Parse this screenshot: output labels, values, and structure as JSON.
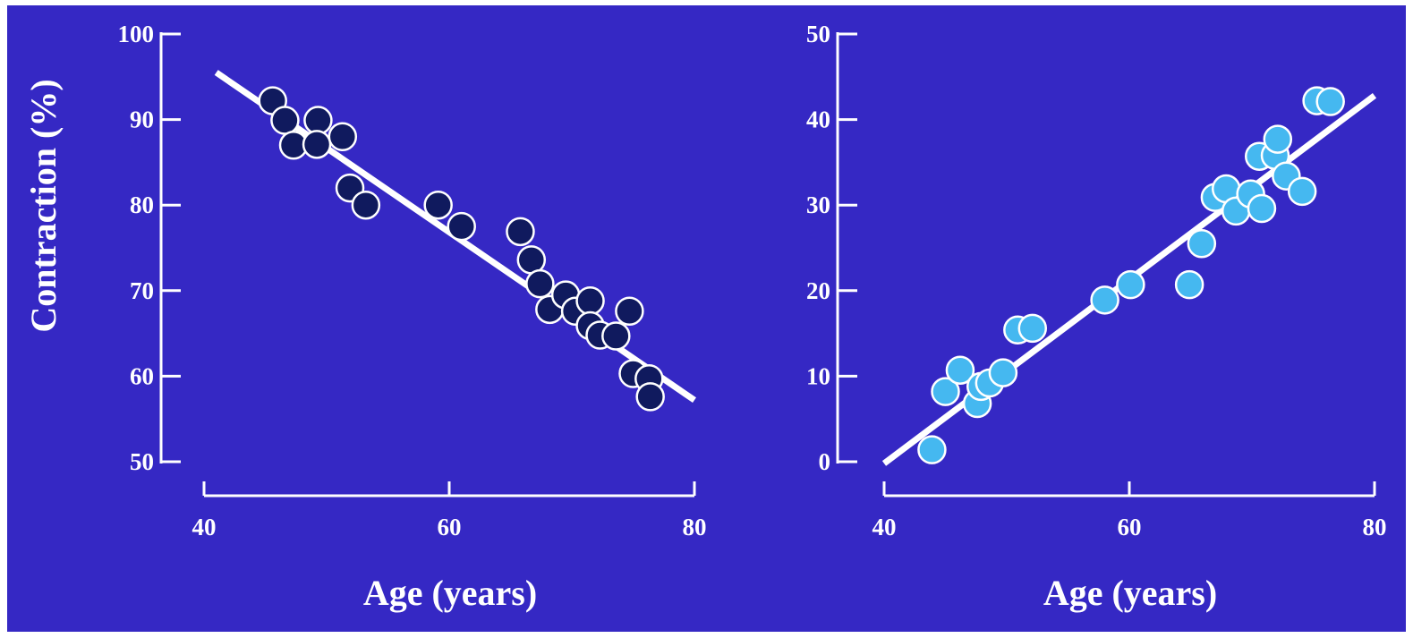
{
  "colors": {
    "background": "#3528c4",
    "axis": "#ffffff",
    "left_marker_fill": "#101a5e",
    "right_marker_fill": "#45b8f0",
    "marker_stroke": "#ffffff",
    "fit_line": "#ffffff"
  },
  "chart_data": [
    {
      "type": "scatter",
      "title": "",
      "xlabel": "Age (years)",
      "ylabel": "Contraction (%)",
      "xlim": [
        40,
        80
      ],
      "ylim": [
        50,
        100
      ],
      "xticks": [
        40,
        60,
        80
      ],
      "yticks": [
        50,
        60,
        70,
        80,
        90,
        100
      ],
      "grid": false,
      "points": [
        [
          45.6,
          92.2
        ],
        [
          46.6,
          89.9
        ],
        [
          47.3,
          87.0
        ],
        [
          49.3,
          89.9
        ],
        [
          49.2,
          87.1
        ],
        [
          51.3,
          88.0
        ],
        [
          51.9,
          82.0
        ],
        [
          53.2,
          80.0
        ],
        [
          59.1,
          80.0
        ],
        [
          61.0,
          77.5
        ],
        [
          65.8,
          76.9
        ],
        [
          66.7,
          73.6
        ],
        [
          67.4,
          70.8
        ],
        [
          68.2,
          67.8
        ],
        [
          69.5,
          69.5
        ],
        [
          70.3,
          67.6
        ],
        [
          71.5,
          68.8
        ],
        [
          71.5,
          65.9
        ],
        [
          72.3,
          64.8
        ],
        [
          73.6,
          64.7
        ],
        [
          74.7,
          67.6
        ],
        [
          75.0,
          60.3
        ],
        [
          76.3,
          59.7
        ],
        [
          76.4,
          57.6
        ]
      ],
      "fit_line": {
        "x": [
          41,
          80
        ],
        "y": [
          95.5,
          57.2
        ]
      }
    },
    {
      "type": "scatter",
      "title": "",
      "xlabel": "Age (years)",
      "ylabel": "",
      "xlim": [
        40,
        80
      ],
      "ylim": [
        0,
        50
      ],
      "xticks": [
        40,
        60,
        80
      ],
      "yticks": [
        0,
        10,
        20,
        30,
        40,
        50
      ],
      "grid": false,
      "points": [
        [
          43.9,
          1.4
        ],
        [
          45.0,
          8.2
        ],
        [
          46.2,
          10.7
        ],
        [
          47.6,
          6.8
        ],
        [
          47.9,
          8.8
        ],
        [
          48.6,
          9.2
        ],
        [
          49.7,
          10.4
        ],
        [
          50.9,
          15.4
        ],
        [
          52.1,
          15.6
        ],
        [
          58.0,
          18.9
        ],
        [
          60.1,
          20.7
        ],
        [
          64.9,
          20.7
        ],
        [
          65.9,
          25.5
        ],
        [
          67.0,
          30.9
        ],
        [
          67.9,
          31.9
        ],
        [
          68.7,
          29.3
        ],
        [
          69.9,
          31.3
        ],
        [
          70.6,
          35.7
        ],
        [
          70.8,
          29.6
        ],
        [
          71.9,
          35.8
        ],
        [
          72.1,
          37.7
        ],
        [
          72.8,
          33.4
        ],
        [
          74.1,
          31.6
        ],
        [
          75.3,
          42.2
        ],
        [
          76.4,
          42.1
        ]
      ],
      "fit_line": {
        "x": [
          40,
          80
        ],
        "y": [
          -0.2,
          42.8
        ]
      }
    }
  ]
}
